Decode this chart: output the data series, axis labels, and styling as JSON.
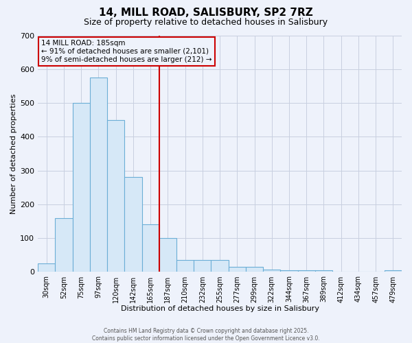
{
  "title": "14, MILL ROAD, SALISBURY, SP2 7RZ",
  "subtitle": "Size of property relative to detached houses in Salisbury",
  "xlabel": "Distribution of detached houses by size in Salisbury",
  "ylabel": "Number of detached properties",
  "categories": [
    "30sqm",
    "52sqm",
    "75sqm",
    "97sqm",
    "120sqm",
    "142sqm",
    "165sqm",
    "187sqm",
    "210sqm",
    "232sqm",
    "255sqm",
    "277sqm",
    "299sqm",
    "322sqm",
    "344sqm",
    "367sqm",
    "389sqm",
    "412sqm",
    "434sqm",
    "457sqm",
    "479sqm"
  ],
  "values": [
    25,
    160,
    500,
    575,
    450,
    280,
    140,
    100,
    35,
    35,
    35,
    15,
    15,
    8,
    5,
    5,
    5,
    0,
    0,
    0,
    5
  ],
  "bar_color": "#d6e8f7",
  "bar_edge_color": "#6baed6",
  "red_line_x": 6.5,
  "red_line_label": "14 MILL ROAD: 185sqm",
  "annotation_line1": "← 91% of detached houses are smaller (2,101)",
  "annotation_line2": "9% of semi-detached houses are larger (212) →",
  "ylim": [
    0,
    700
  ],
  "yticks": [
    0,
    100,
    200,
    300,
    400,
    500,
    600,
    700
  ],
  "background_color": "#eef2fb",
  "grid_color": "#c8cfe0",
  "annotation_box_edge": "#cc0000",
  "red_line_color": "#cc0000",
  "footer": "Contains HM Land Registry data © Crown copyright and database right 2025.\nContains public sector information licensed under the Open Government Licence v3.0."
}
